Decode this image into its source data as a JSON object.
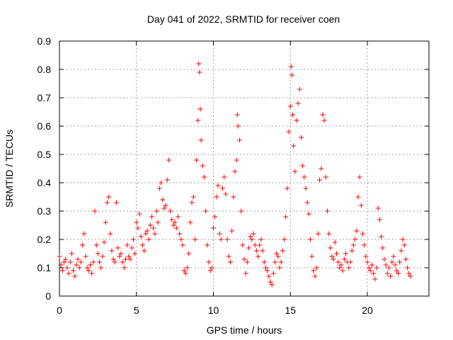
{
  "chart_data": {
    "type": "scatter",
    "title": "Day 041 of 2022, SRMTID for receiver coen",
    "xlabel": "GPS time / hours",
    "ylabel": "SRMTID / TECUs",
    "xlim": [
      0,
      24
    ],
    "ylim": [
      0,
      0.9
    ],
    "xticks": [
      0,
      5,
      10,
      15,
      20
    ],
    "xtick_labels": [
      "0",
      "5",
      "10",
      "15",
      "20"
    ],
    "yticks": [
      0,
      0.1,
      0.2,
      0.3,
      0.4,
      0.5,
      0.6,
      0.7,
      0.8,
      0.9
    ],
    "ytick_labels": [
      "0",
      "0.1",
      "0.2",
      "0.3",
      "0.4",
      "0.5",
      "0.6",
      "0.7",
      "0.8",
      "0.9"
    ],
    "grid": true,
    "marker": "+",
    "series": [
      {
        "name": "SRMTID",
        "color": "#ff0000",
        "x": [
          0.0,
          0.1,
          0.2,
          0.3,
          0.4,
          0.5,
          0.6,
          0.7,
          0.8,
          0.9,
          1.0,
          1.1,
          1.2,
          1.3,
          1.4,
          1.5,
          1.6,
          1.7,
          1.8,
          1.9,
          2.0,
          2.1,
          2.2,
          2.3,
          2.4,
          2.5,
          2.6,
          2.7,
          2.8,
          2.9,
          3.0,
          3.1,
          3.2,
          3.3,
          3.4,
          3.5,
          3.6,
          3.7,
          3.8,
          3.9,
          4.0,
          4.1,
          4.2,
          4.3,
          4.4,
          4.5,
          4.6,
          4.7,
          4.8,
          4.9,
          5.0,
          5.1,
          5.2,
          5.3,
          5.4,
          5.5,
          5.6,
          5.7,
          5.8,
          5.9,
          6.0,
          6.1,
          6.2,
          6.3,
          6.4,
          6.5,
          6.6,
          6.7,
          6.8,
          6.9,
          7.0,
          7.1,
          7.2,
          7.3,
          7.4,
          7.5,
          7.6,
          7.7,
          7.8,
          7.9,
          8.0,
          8.1,
          8.2,
          8.3,
          8.4,
          8.5,
          8.6,
          8.7,
          8.8,
          8.9,
          9.0,
          9.05,
          9.1,
          9.15,
          9.2,
          9.3,
          9.4,
          9.5,
          9.6,
          9.7,
          9.8,
          9.9,
          10.0,
          10.1,
          10.2,
          10.3,
          10.4,
          10.5,
          10.6,
          10.7,
          10.8,
          10.9,
          11.0,
          11.1,
          11.2,
          11.3,
          11.4,
          11.5,
          11.55,
          11.6,
          11.7,
          11.8,
          11.9,
          12.0,
          12.1,
          12.2,
          12.3,
          12.4,
          12.5,
          12.6,
          12.7,
          12.8,
          12.9,
          13.0,
          13.1,
          13.2,
          13.3,
          13.4,
          13.5,
          13.6,
          13.7,
          13.8,
          13.9,
          14.0,
          14.1,
          14.2,
          14.3,
          14.4,
          14.5,
          14.6,
          14.7,
          14.8,
          14.9,
          15.0,
          15.05,
          15.1,
          15.15,
          15.2,
          15.3,
          15.4,
          15.5,
          15.6,
          15.7,
          15.8,
          15.9,
          16.0,
          16.1,
          16.2,
          16.3,
          16.4,
          16.5,
          16.6,
          16.7,
          16.8,
          16.9,
          17.0,
          17.1,
          17.2,
          17.3,
          17.4,
          17.5,
          17.6,
          17.7,
          17.8,
          17.9,
          18.0,
          18.1,
          18.2,
          18.3,
          18.4,
          18.5,
          18.6,
          18.7,
          18.8,
          18.9,
          19.0,
          19.1,
          19.2,
          19.3,
          19.4,
          19.5,
          19.6,
          19.7,
          19.8,
          19.9,
          20.0,
          20.1,
          20.2,
          20.3,
          20.4,
          20.5,
          20.6,
          20.7,
          20.8,
          20.9,
          21.0,
          21.1,
          21.2,
          21.3,
          21.4,
          21.5,
          21.6,
          21.7,
          21.8,
          21.9,
          22.0,
          22.1,
          22.2,
          22.3,
          22.4,
          22.5,
          22.6,
          22.7,
          22.8
        ],
        "y": [
          0.14,
          0.11,
          0.09,
          0.12,
          0.13,
          0.1,
          0.08,
          0.12,
          0.15,
          0.09,
          0.07,
          0.11,
          0.13,
          0.1,
          0.12,
          0.18,
          0.22,
          0.14,
          0.1,
          0.09,
          0.11,
          0.08,
          0.12,
          0.3,
          0.18,
          0.15,
          0.12,
          0.1,
          0.14,
          0.19,
          0.26,
          0.33,
          0.35,
          0.22,
          0.16,
          0.13,
          0.12,
          0.33,
          0.17,
          0.14,
          0.15,
          0.12,
          0.1,
          0.13,
          0.18,
          0.14,
          0.13,
          0.17,
          0.2,
          0.15,
          0.26,
          0.24,
          0.29,
          0.21,
          0.18,
          0.16,
          0.22,
          0.23,
          0.2,
          0.25,
          0.28,
          0.24,
          0.22,
          0.3,
          0.26,
          0.38,
          0.4,
          0.34,
          0.31,
          0.32,
          0.41,
          0.48,
          0.3,
          0.27,
          0.25,
          0.26,
          0.24,
          0.28,
          0.22,
          0.2,
          0.18,
          0.09,
          0.08,
          0.1,
          0.15,
          0.26,
          0.33,
          0.35,
          0.2,
          0.48,
          0.62,
          0.82,
          0.79,
          0.66,
          0.55,
          0.46,
          0.42,
          0.3,
          0.18,
          0.12,
          0.09,
          0.1,
          0.24,
          0.28,
          0.35,
          0.39,
          0.22,
          0.2,
          0.38,
          0.42,
          0.36,
          0.2,
          0.14,
          0.12,
          0.23,
          0.35,
          0.44,
          0.48,
          0.64,
          0.6,
          0.55,
          0.3,
          0.18,
          0.13,
          0.08,
          0.12,
          0.17,
          0.21,
          0.2,
          0.22,
          0.18,
          0.16,
          0.14,
          0.18,
          0.2,
          0.16,
          0.12,
          0.1,
          0.09,
          0.07,
          0.05,
          0.04,
          0.08,
          0.12,
          0.15,
          0.14,
          0.1,
          0.12,
          0.16,
          0.2,
          0.28,
          0.38,
          0.58,
          0.67,
          0.81,
          0.78,
          0.64,
          0.53,
          0.44,
          0.62,
          0.68,
          0.73,
          0.56,
          0.46,
          0.42,
          0.38,
          0.33,
          0.29,
          0.2,
          0.14,
          0.09,
          0.07,
          0.1,
          0.22,
          0.41,
          0.45,
          0.64,
          0.62,
          0.42,
          0.3,
          0.22,
          0.17,
          0.14,
          0.13,
          0.19,
          0.15,
          0.12,
          0.1,
          0.11,
          0.09,
          0.13,
          0.15,
          0.12,
          0.1,
          0.12,
          0.16,
          0.18,
          0.2,
          0.23,
          0.35,
          0.42,
          0.32,
          0.22,
          0.18,
          0.14,
          0.12,
          0.1,
          0.09,
          0.11,
          0.08,
          0.06,
          0.1,
          0.31,
          0.27,
          0.21,
          0.17,
          0.13,
          0.11,
          0.08,
          0.1,
          0.07,
          0.12,
          0.14,
          0.11,
          0.09,
          0.08,
          0.12,
          0.16,
          0.2,
          0.18,
          0.13,
          0.1,
          0.08,
          0.07
        ]
      }
    ]
  }
}
